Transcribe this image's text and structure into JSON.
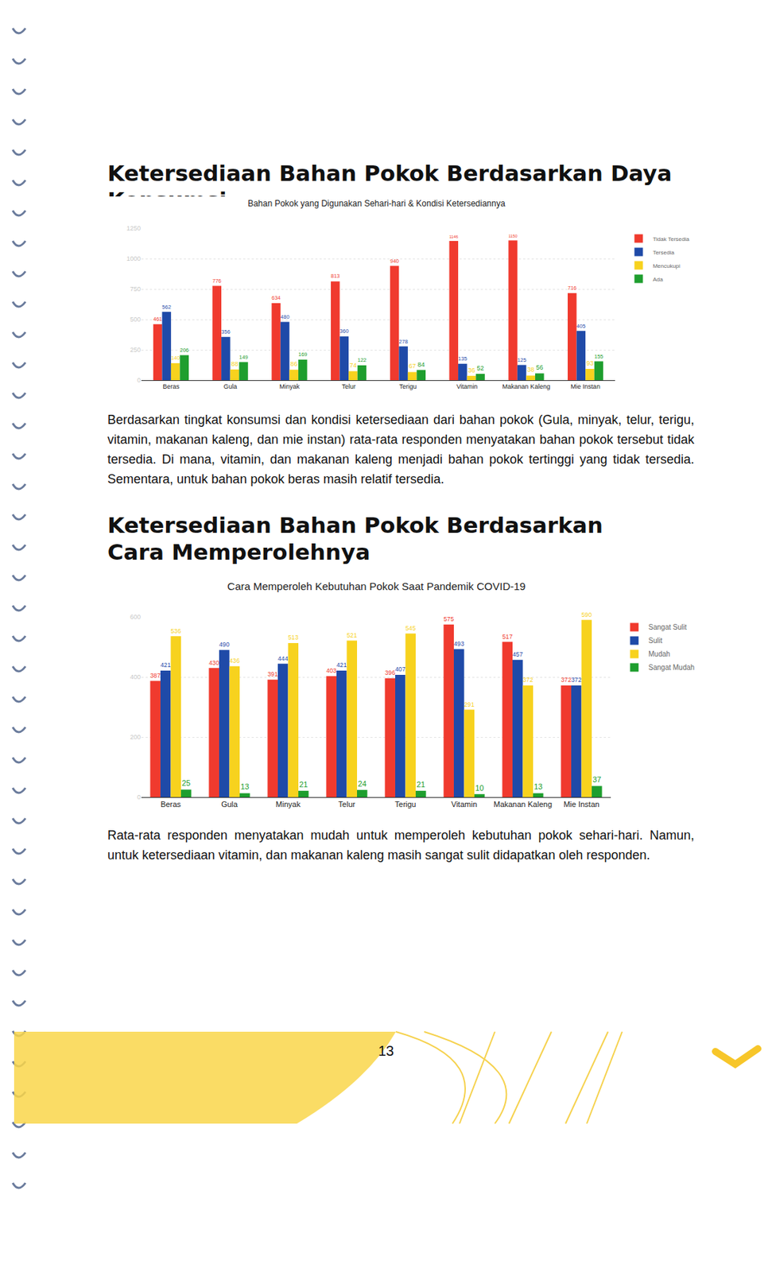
{
  "chart_data": [
    {
      "type": "bar",
      "title": "Bahan Pokok yang Digunakan Sehari-hari & Kondisi Ketersediannya",
      "categories": [
        "Beras",
        "Gula",
        "Minyak",
        "Telur",
        "Terigu",
        "Vitamin",
        "Makanan Kaleng",
        "Mie Instan"
      ],
      "series": [
        {
          "name": "Tidak Tersedia",
          "color": "#f03a2e",
          "values": [
            461,
            776,
            634,
            813,
            940,
            1146,
            1150,
            716
          ]
        },
        {
          "name": "Tersedia",
          "color": "#1f4aa8",
          "values": [
            562,
            356,
            480,
            360,
            278,
            135,
            125,
            405
          ]
        },
        {
          "name": "Mencukupi",
          "color": "#f7d21e",
          "values": [
            140,
            88,
            86,
            74,
            67,
            36,
            38,
            93
          ]
        },
        {
          "name": "Ada",
          "color": "#1e9e2e",
          "values": [
            206,
            149,
            169,
            122,
            84,
            52,
            56,
            155
          ]
        }
      ],
      "ylim": [
        0,
        1250
      ],
      "yticks": [
        0,
        250,
        500,
        750,
        1000,
        1250
      ],
      "grid": true,
      "data_labels": true,
      "legend": "right"
    },
    {
      "type": "bar",
      "title": "Cara Memperoleh Kebutuhan Pokok Saat Pandemik COVID-19",
      "categories": [
        "Beras",
        "Gula",
        "Minyak",
        "Telur",
        "Terigu",
        "Vitamin",
        "Makanan Kaleng",
        "Mie Instan"
      ],
      "series": [
        {
          "name": "Sangat Sulit",
          "color": "#f03a2e",
          "values": [
            387,
            430,
            391,
            403,
            396,
            575,
            517,
            372
          ]
        },
        {
          "name": "Sulit",
          "color": "#1f4aa8",
          "values": [
            421,
            490,
            444,
            421,
            407,
            493,
            457,
            372
          ]
        },
        {
          "name": "Mudah",
          "color": "#f7d21e",
          "values": [
            536,
            436,
            513,
            521,
            545,
            291,
            372,
            590
          ]
        },
        {
          "name": "Sangat Mudah",
          "color": "#1e9e2e",
          "values": [
            25,
            13,
            21,
            24,
            21,
            10,
            13,
            37
          ]
        }
      ],
      "ylim": [
        0,
        600
      ],
      "yticks": [
        0,
        200,
        400,
        600
      ],
      "grid": true,
      "data_labels": true,
      "legend": "right"
    }
  ],
  "document": {
    "sections": [
      {
        "heading": [
          "Ketersediaan Bahan Pokok Berdasarkan Daya Konsumsi"
        ],
        "paragraph": "Berdasarkan tingkat konsumsi dan kondisi ketersediaan dari bahan pokok (Gula, minyak, telur, terigu, vitamin, makanan kaleng, dan mie instan) rata-rata responden menyatakan bahan pokok tersebut tidak tersedia. Di mana, vitamin, dan makanan kaleng menjadi bahan pokok tertinggi yang tidak tersedia. Sementara, untuk bahan pokok beras masih relatif tersedia."
      },
      {
        "heading": [
          "Ketersediaan Bahan Pokok Berdasarkan",
          "Cara Memperolehnya"
        ],
        "paragraph": "Rata-rata responden menyatakan mudah untuk memperoleh kebutuhan pokok sehari-hari. Namun, untuk ketersediaan vitamin, dan makanan kaleng masih sangat sulit didapatkan oleh responden."
      }
    ],
    "page_number": "13"
  }
}
